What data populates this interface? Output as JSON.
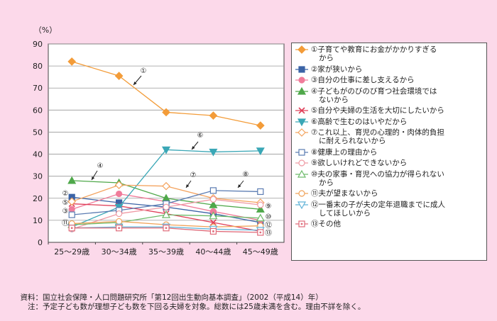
{
  "chart_data": {
    "type": "line",
    "ylabel": "（%）",
    "ylim": [
      0,
      90
    ],
    "yticks": [
      "0",
      "10",
      "20",
      "30",
      "40",
      "50",
      "60",
      "70",
      "80",
      "90"
    ],
    "categories": [
      "25～29歳",
      "30～34歳",
      "35～39歳",
      "40～44歳",
      "45～49歳"
    ],
    "series": [
      {
        "name": "①子育てや教育にお金がかかりすぎるから",
        "label_lines": [
          "①子育てや教育にお金がかかりすぎる",
          "から"
        ],
        "marker": "①",
        "color": "#f39c39",
        "symbol": "diamond",
        "filled": true,
        "values": [
          82,
          75.5,
          59,
          57.5,
          53
        ]
      },
      {
        "name": "②家が狭いから",
        "label_lines": [
          "②家が狭いから"
        ],
        "marker": "②",
        "color": "#3b63a6",
        "symbol": "square",
        "filled": true,
        "values": [
          20.5,
          18,
          16,
          13,
          9
        ]
      },
      {
        "name": "③自分の仕事に差し支えるから",
        "label_lines": [
          "③自分の仕事に差し支えるから"
        ],
        "marker": "③",
        "color": "#f07c9a",
        "symbol": "circle",
        "filled": true,
        "values": [
          15,
          22,
          18.5,
          14,
          10
        ]
      },
      {
        "name": "④子どもがのびのび育つ社会環境ではないから",
        "label_lines": [
          "④子どもがのびのび育つ社会環境では",
          "ないから"
        ],
        "marker": "④",
        "color": "#4fa84a",
        "symbol": "triangle",
        "filled": true,
        "values": [
          28,
          27,
          20,
          17,
          15
        ]
      },
      {
        "name": "⑤自分や夫婦の生活を大切にしたいから",
        "label_lines": [
          "⑤自分や夫婦の生活を大切にしたいから"
        ],
        "marker": "⑤",
        "color": "#e0405a",
        "symbol": "cross",
        "filled": false,
        "values": [
          17.5,
          16.5,
          13,
          9,
          5
        ]
      },
      {
        "name": "⑥高齢で生むのはいやだから",
        "label_lines": [
          "⑥高齢で生むのはいやだから"
        ],
        "marker": "⑥",
        "color": "#3aa7b6",
        "symbol": "triangle-down",
        "filled": true,
        "values": [
          7,
          16,
          42,
          41,
          41.5
        ]
      },
      {
        "name": "⑦これ以上、育児の心理的・肉体的負担に耐えられないから",
        "label_lines": [
          "⑦これ以上、育児の心理的・肉体的負担",
          "に耐えられないから"
        ],
        "marker": "⑦",
        "color": "#f4a35e",
        "symbol": "diamond",
        "filled": false,
        "values": [
          18.5,
          26,
          25.5,
          20,
          18
        ]
      },
      {
        "name": "⑧健康上の理由から",
        "label_lines": [
          "⑧健康上の理由から"
        ],
        "marker": "⑧",
        "color": "#5b7cb2",
        "symbol": "square",
        "filled": false,
        "values": [
          12.5,
          14.5,
          17.5,
          23.5,
          23
        ]
      },
      {
        "name": "⑨欲しいけれどできないから",
        "label_lines": [
          "⑨欲しいけれどできないから"
        ],
        "marker": "⑨",
        "color": "#ef9aa4",
        "symbol": "circle",
        "filled": false,
        "values": [
          6,
          13,
          16,
          19.5,
          17
        ]
      },
      {
        "name": "⑩夫の家事・育児への協力が得られないから",
        "label_lines": [
          "⑩夫の家事・育児への協力が得られない",
          "から"
        ],
        "marker": "⑩",
        "color": "#6dbb6a",
        "symbol": "triangle",
        "filled": false,
        "values": [
          8,
          9,
          12.5,
          12,
          11
        ]
      },
      {
        "name": "⑪夫が望まないから",
        "label_lines": [
          "⑪夫が望まないから"
        ],
        "marker": "⑪",
        "color": "#f0a35a",
        "symbol": "circle",
        "filled": false,
        "values": [
          8.5,
          9.5,
          8,
          7,
          7.5
        ]
      },
      {
        "name": "⑫一番末の子が夫の定年退職までに成人してほしいから",
        "label_lines": [
          "⑫一番末の子が夫の定年退職までに成人",
          "してほしいから"
        ],
        "marker": "⑫",
        "color": "#62b3d8",
        "symbol": "triangle-down",
        "filled": false,
        "values": [
          6.5,
          7,
          7,
          6,
          5.5
        ]
      },
      {
        "name": "⑬その他",
        "label_lines": [
          "⑬その他"
        ],
        "marker": "⑬",
        "color": "#e06b7a",
        "symbol": "square-dot",
        "filled": false,
        "values": [
          6.5,
          6.5,
          6.5,
          5,
          4.5
        ]
      }
    ]
  },
  "footer": {
    "source_key": "資料：",
    "source_text": "国立社会保障・人口問題研究所「第12回出生動向基本調査」（2002（平成14）年）",
    "note_key": "注：",
    "note_text": "予定子ども数が理想子ども数を下回る夫婦を対象。総数には25歳未満を含む。理由不詳を除く。"
  }
}
